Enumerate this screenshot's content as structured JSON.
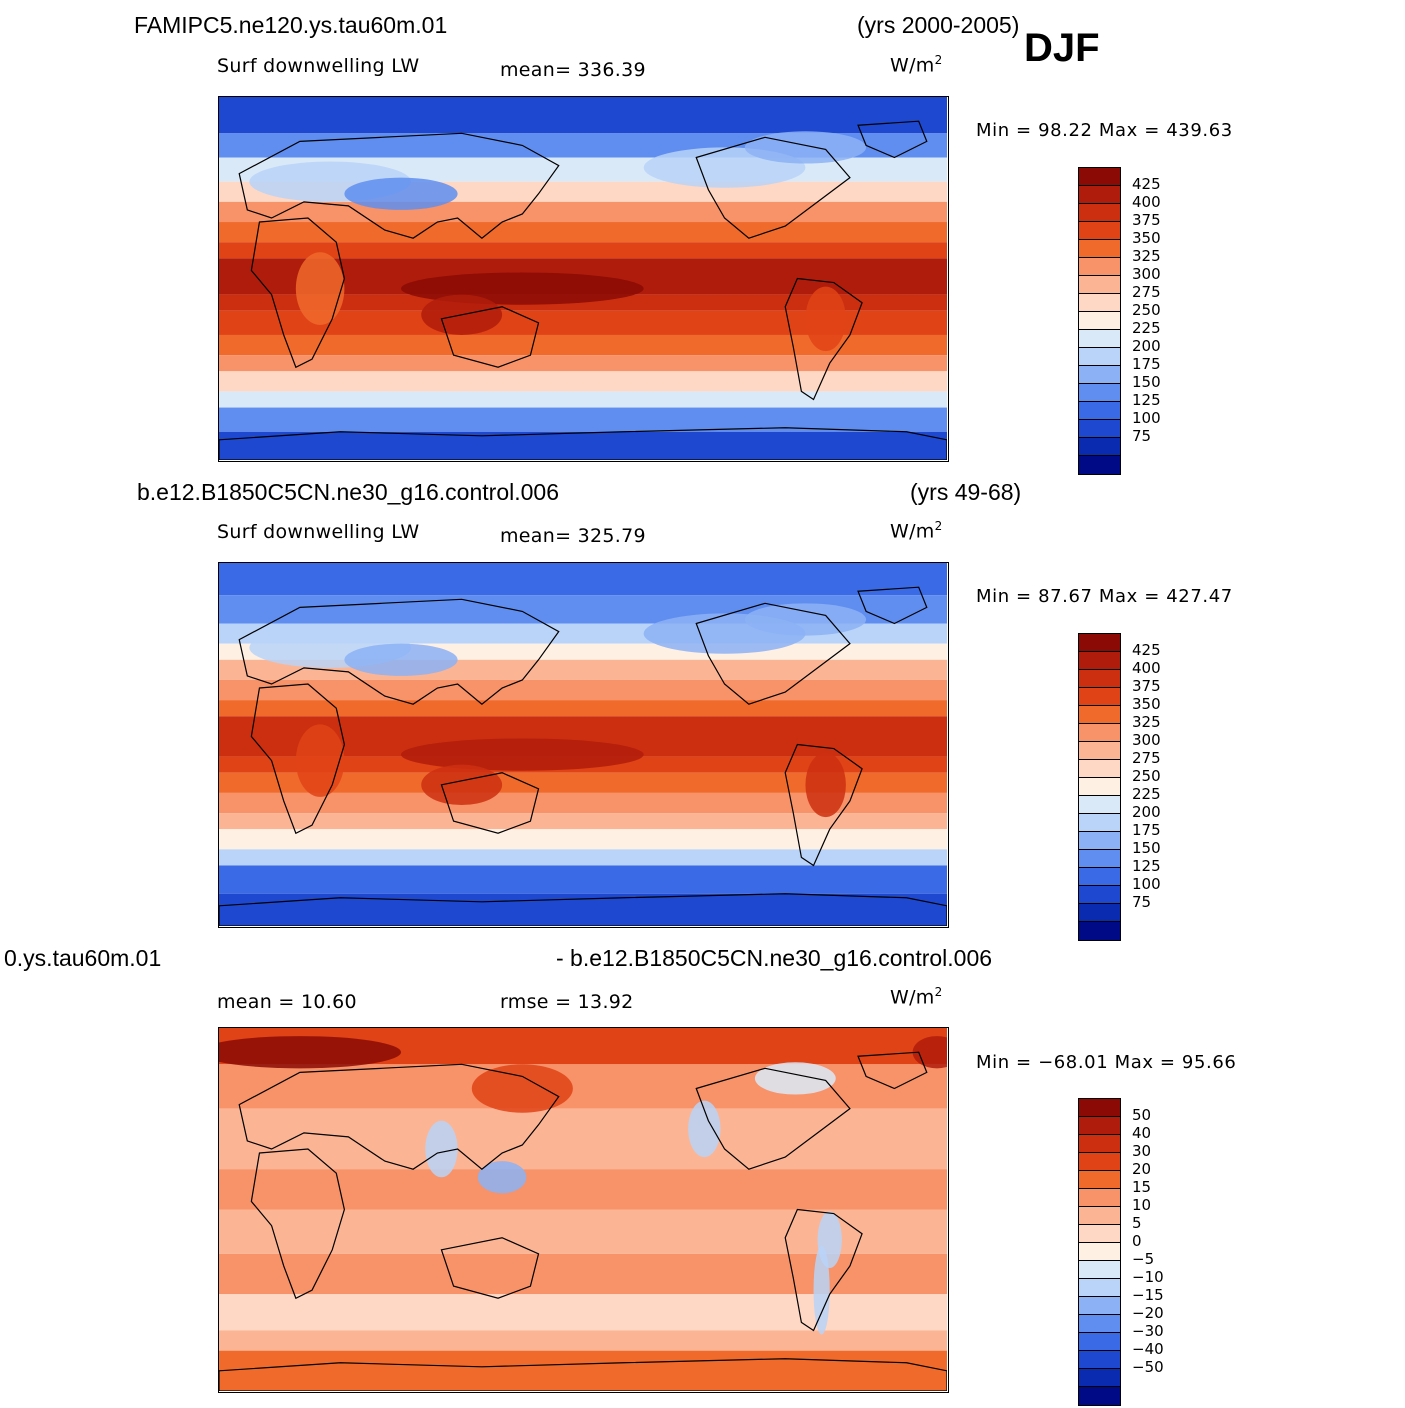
{
  "season": "DJF",
  "panels": [
    {
      "id": "top",
      "case_name": "FAMIPC5.ne120.ys.tau60m.01",
      "years": "(yrs 2000-2005)",
      "variable": "Surf downwelling LW",
      "stat_left": "",
      "stat_mid": "mean=  336.39",
      "units_base": "W/m",
      "units_exp": "2",
      "min_max": "Min =   98.22  Max =  439.63",
      "colorbar": {
        "labels": [
          "425",
          "400",
          "375",
          "350",
          "325",
          "300",
          "275",
          "250",
          "225",
          "200",
          "175",
          "150",
          "125",
          "100",
          "75"
        ],
        "colors": [
          "#8b0a05",
          "#b01c0c",
          "#cc2f10",
          "#e04316",
          "#f06a2c",
          "#f89268",
          "#fbb595",
          "#fed8c4",
          "#fff0e4",
          "#dae9f8",
          "#b9d4f8",
          "#8cb2f5",
          "#5f8ef0",
          "#3a6ae5",
          "#1e48d0",
          "#0a2bb0",
          "#000a86"
        ]
      }
    },
    {
      "id": "middle",
      "case_name": "b.e12.B1850C5CN.ne30_g16.control.006",
      "years": "(yrs 49-68)",
      "variable": "Surf downwelling LW",
      "stat_left": "",
      "stat_mid": "mean=  325.79",
      "units_base": "W/m",
      "units_exp": "2",
      "min_max": "Min =   87.67  Max =  427.47",
      "colorbar": {
        "labels": [
          "425",
          "400",
          "375",
          "350",
          "325",
          "300",
          "275",
          "250",
          "225",
          "200",
          "175",
          "150",
          "125",
          "100",
          "75"
        ],
        "colors": [
          "#8b0a05",
          "#b01c0c",
          "#cc2f10",
          "#e04316",
          "#f06a2c",
          "#f89268",
          "#fbb595",
          "#fed8c4",
          "#fff0e4",
          "#dae9f8",
          "#b9d4f8",
          "#8cb2f5",
          "#5f8ef0",
          "#3a6ae5",
          "#1e48d0",
          "#0a2bb0",
          "#000a86"
        ]
      }
    },
    {
      "id": "bottom",
      "case_name": "0.ys.tau60m.01",
      "years": "- b.e12.B1850C5CN.ne30_g16.control.006",
      "variable": "",
      "stat_left": "mean =   10.60",
      "stat_mid": "rmse =   13.92",
      "units_base": "W/m",
      "units_exp": "2",
      "min_max": "Min = −68.01  Max =   95.66",
      "colorbar": {
        "labels": [
          "50",
          "40",
          "30",
          "20",
          "15",
          "10",
          "5",
          "0",
          "−5",
          "−10",
          "−15",
          "−20",
          "−30",
          "−40",
          "−50"
        ],
        "colors": [
          "#8b0a05",
          "#b01c0c",
          "#cc2f10",
          "#e04316",
          "#f06a2c",
          "#f89268",
          "#fbb595",
          "#fed8c4",
          "#fff0e4",
          "#dae9f8",
          "#b9d4f8",
          "#8cb2f5",
          "#5f8ef0",
          "#3a6ae5",
          "#1e48d0",
          "#0a2bb0",
          "#000a86"
        ]
      }
    }
  ]
}
